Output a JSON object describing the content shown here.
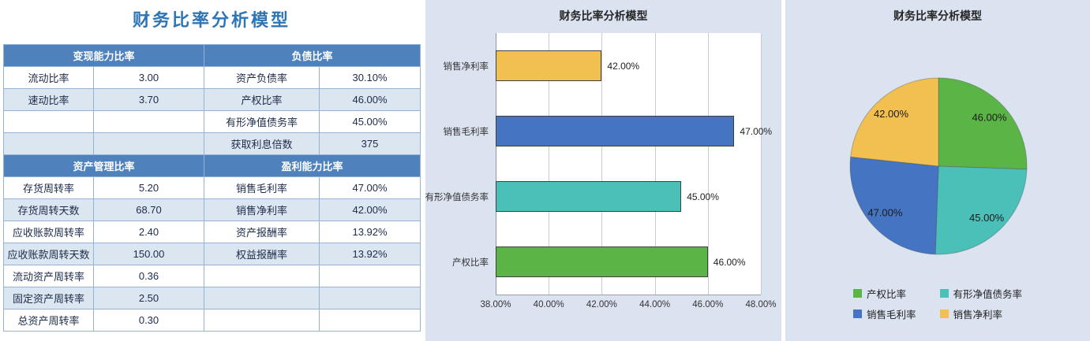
{
  "colors": {
    "header_blue": "#4f81bd",
    "band_fill": "#dce6f1",
    "table_border": "#95b3d7",
    "panel_bg": "#dce3f0",
    "title_blue": "#2e75b6",
    "plot_bg": "#ffffff",
    "text_dark": "#262626",
    "series_green": "#5ab546",
    "series_teal": "#4bc0b9",
    "series_blue": "#4575c2",
    "series_orange": "#f2c050"
  },
  "chart_data": [
    {
      "type": "table",
      "title": "财务比率分析模型",
      "rows": [
        {
          "header": true,
          "cells": [
            "变现能力比率",
            "负债比率"
          ]
        },
        {
          "header": false,
          "cells": [
            "流动比率",
            "3.00",
            "资产负债率",
            "30.10%"
          ]
        },
        {
          "header": false,
          "cells": [
            "速动比率",
            "3.70",
            "产权比率",
            "46.00%"
          ]
        },
        {
          "header": false,
          "cells": [
            "",
            "",
            "有形净值债务率",
            "45.00%"
          ]
        },
        {
          "header": false,
          "cells": [
            "",
            "",
            "获取利息倍数",
            "375"
          ]
        },
        {
          "header": true,
          "cells": [
            "资产管理比率",
            "盈利能力比率"
          ]
        },
        {
          "header": false,
          "cells": [
            "存货周转率",
            "5.20",
            "销售毛利率",
            "47.00%"
          ]
        },
        {
          "header": false,
          "cells": [
            "存货周转天数",
            "68.70",
            "销售净利率",
            "42.00%"
          ]
        },
        {
          "header": false,
          "cells": [
            "应收账款周转率",
            "2.40",
            "资产报酬率",
            "13.92%"
          ]
        },
        {
          "header": false,
          "cells": [
            "应收账款周转天数",
            "150.00",
            "权益报酬率",
            "13.92%"
          ]
        },
        {
          "header": false,
          "cells": [
            "流动资产周转率",
            "0.36",
            "",
            ""
          ]
        },
        {
          "header": false,
          "cells": [
            "固定资产周转率",
            "2.50",
            "",
            ""
          ]
        },
        {
          "header": false,
          "cells": [
            "总资产周转率",
            "0.30",
            "",
            ""
          ]
        }
      ]
    },
    {
      "type": "bar",
      "orientation": "horizontal",
      "title": "财务比率分析模型",
      "categories": [
        "销售净利率",
        "销售毛利率",
        "有形净值债务率",
        "产权比率"
      ],
      "values": [
        42,
        47,
        45,
        46
      ],
      "value_labels": [
        "42.00%",
        "47.00%",
        "45.00%",
        "46.00%"
      ],
      "colors": [
        "#f2c050",
        "#4575c2",
        "#4bc0b9",
        "#5ab546"
      ],
      "xlim": [
        38,
        48
      ],
      "x_tick_labels": [
        "38.00%",
        "40.00%",
        "42.00%",
        "44.00%",
        "46.00%",
        "48.00%"
      ],
      "grid": true,
      "legend": "none"
    },
    {
      "type": "pie",
      "title": "财务比率分析模型",
      "start_angle": 0,
      "direction": "clockwise",
      "legend_position": "bottom",
      "slices": [
        {
          "label": "产权比率",
          "value": 46,
          "display": "46.00%",
          "color": "#5ab546"
        },
        {
          "label": "有形净值债务率",
          "value": 45,
          "display": "45.00%",
          "color": "#4bc0b9"
        },
        {
          "label": "销售毛利率",
          "value": 47,
          "display": "47.00%",
          "color": "#4575c2"
        },
        {
          "label": "销售净利率",
          "value": 42,
          "display": "42.00%",
          "color": "#f2c050"
        }
      ]
    }
  ]
}
